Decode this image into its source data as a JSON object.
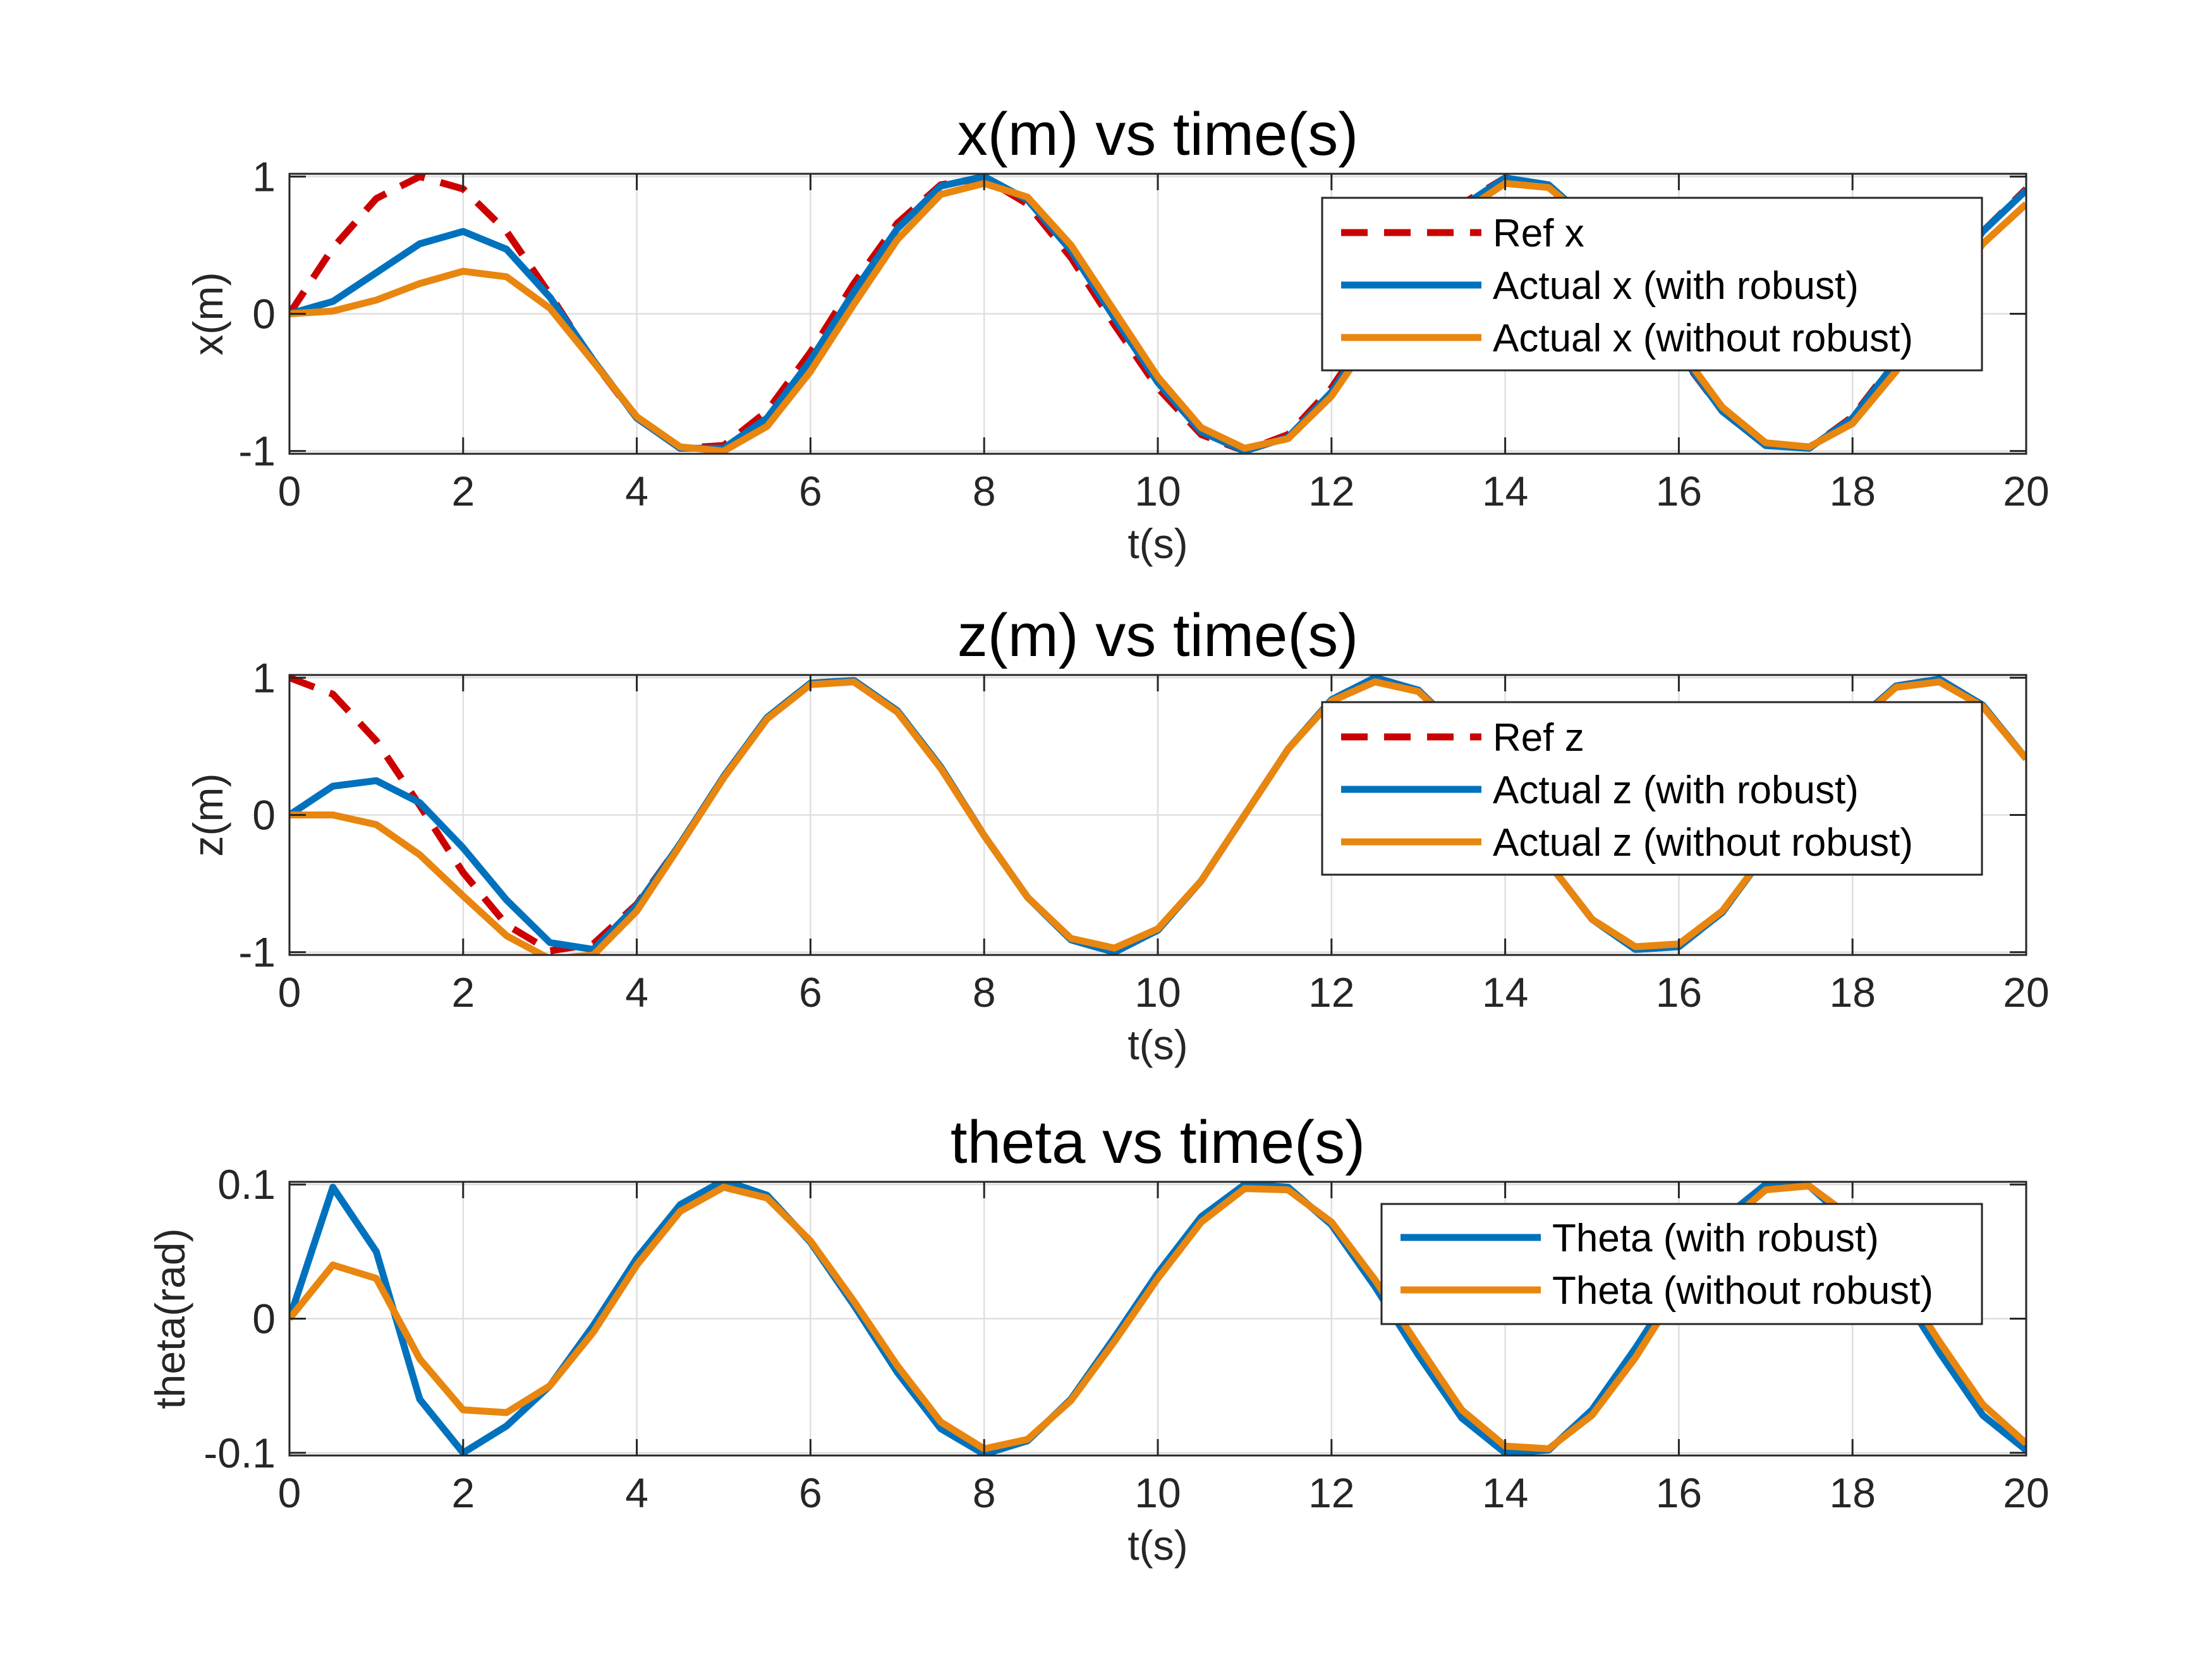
{
  "chart_data": [
    {
      "type": "line",
      "title": "x(m) vs time(s)",
      "xlabel": "t(s)",
      "ylabel": "x(m)",
      "xlim": [
        0,
        20
      ],
      "ylim": [
        -1.02,
        1.02
      ],
      "xticks": [
        0,
        2,
        4,
        6,
        8,
        10,
        12,
        14,
        16,
        18,
        20
      ],
      "yticks": [
        -1,
        0,
        1
      ],
      "ytick_labels": [
        "-1",
        "0",
        "1"
      ],
      "grid": true,
      "legend_position": "top-right",
      "x": [
        0,
        0.5,
        1,
        1.5,
        2,
        2.5,
        3,
        3.5,
        4,
        4.5,
        5,
        5.5,
        6,
        6.5,
        7,
        7.5,
        8,
        8.5,
        9,
        9.5,
        10,
        10.5,
        11,
        11.5,
        12,
        12.5,
        13,
        13.5,
        14,
        14.5,
        15,
        15.5,
        16,
        16.5,
        17,
        17.5,
        18,
        18.5,
        19,
        19.5,
        20
      ],
      "series": [
        {
          "name": "Ref x",
          "color": "#CC0000",
          "dash": true,
          "values": [
            0,
            0.48,
            0.84,
            1.0,
            0.91,
            0.6,
            0.14,
            -0.35,
            -0.76,
            -0.98,
            -0.96,
            -0.71,
            -0.28,
            0.22,
            0.66,
            0.94,
            0.99,
            0.8,
            0.41,
            -0.08,
            -0.54,
            -0.88,
            -1.0,
            -0.88,
            -0.54,
            -0.07,
            0.42,
            0.8,
            0.99,
            0.93,
            0.65,
            0.2,
            -0.29,
            -0.71,
            -0.96,
            -0.98,
            -0.75,
            -0.34,
            0.15,
            0.6,
            0.91
          ]
        },
        {
          "name": "Actual x (with robust)",
          "color": "#0072BD",
          "dash": false,
          "values": [
            0,
            0.09,
            0.3,
            0.51,
            0.6,
            0.47,
            0.12,
            -0.34,
            -0.76,
            -0.98,
            -0.98,
            -0.76,
            -0.34,
            0.16,
            0.62,
            0.93,
            1.0,
            0.83,
            0.46,
            -0.03,
            -0.5,
            -0.86,
            -1.0,
            -0.9,
            -0.57,
            -0.1,
            0.39,
            0.78,
            0.99,
            0.94,
            0.66,
            0.21,
            -0.28,
            -0.71,
            -0.96,
            -0.98,
            -0.76,
            -0.35,
            0.14,
            0.6,
            0.9
          ]
        },
        {
          "name": "Actual x (without robust)",
          "color": "#E8860F",
          "dash": false,
          "values": [
            0,
            0.02,
            0.1,
            0.22,
            0.31,
            0.27,
            0.04,
            -0.35,
            -0.75,
            -0.97,
            -1.0,
            -0.82,
            -0.42,
            0.07,
            0.54,
            0.87,
            0.95,
            0.85,
            0.5,
            0.02,
            -0.46,
            -0.83,
            -0.98,
            -0.91,
            -0.6,
            -0.14,
            0.34,
            0.74,
            0.95,
            0.92,
            0.66,
            0.23,
            -0.25,
            -0.68,
            -0.94,
            -0.97,
            -0.8,
            -0.42,
            0.05,
            0.51,
            0.8
          ]
        }
      ]
    },
    {
      "type": "line",
      "title": "z(m) vs time(s)",
      "xlabel": "t(s)",
      "ylabel": "z(m)",
      "xlim": [
        0,
        20
      ],
      "ylim": [
        -1.02,
        1.02
      ],
      "xticks": [
        0,
        2,
        4,
        6,
        8,
        10,
        12,
        14,
        16,
        18,
        20
      ],
      "yticks": [
        -1,
        0,
        1
      ],
      "ytick_labels": [
        "-1",
        "0",
        "1"
      ],
      "grid": true,
      "legend_position": "top-right",
      "x": [
        0,
        0.5,
        1,
        1.5,
        2,
        2.5,
        3,
        3.5,
        4,
        4.5,
        5,
        5.5,
        6,
        6.5,
        7,
        7.5,
        8,
        8.5,
        9,
        9.5,
        10,
        10.5,
        11,
        11.5,
        12,
        12.5,
        13,
        13.5,
        14,
        14.5,
        15,
        15.5,
        16,
        16.5,
        17,
        17.5,
        18,
        18.5,
        19,
        19.5,
        20
      ],
      "series": [
        {
          "name": "Ref z",
          "color": "#CC0000",
          "dash": true,
          "values": [
            1.0,
            0.88,
            0.54,
            0.07,
            -0.42,
            -0.8,
            -0.99,
            -0.94,
            -0.65,
            -0.21,
            0.28,
            0.71,
            0.96,
            0.98,
            0.76,
            0.35,
            -0.15,
            -0.6,
            -0.91,
            -1.0,
            -0.84,
            -0.48,
            0.0,
            0.48,
            0.84,
            1.0,
            0.91,
            0.6,
            0.14,
            -0.35,
            -0.76,
            -0.98,
            -0.96,
            -0.71,
            -0.28,
            0.22,
            0.66,
            0.94,
            0.99,
            0.8,
            0.41
          ]
        },
        {
          "name": "Actual z (with robust)",
          "color": "#0072BD",
          "dash": false,
          "values": [
            0,
            0.21,
            0.25,
            0.09,
            -0.24,
            -0.62,
            -0.93,
            -0.98,
            -0.66,
            -0.21,
            0.28,
            0.71,
            0.96,
            0.98,
            0.76,
            0.35,
            -0.15,
            -0.6,
            -0.91,
            -1.0,
            -0.84,
            -0.48,
            0.0,
            0.48,
            0.84,
            1.0,
            0.91,
            0.6,
            0.14,
            -0.35,
            -0.76,
            -0.98,
            -0.96,
            -0.71,
            -0.28,
            0.22,
            0.66,
            0.94,
            0.99,
            0.8,
            0.41
          ]
        },
        {
          "name": "Actual z (without robust)",
          "color": "#E8860F",
          "dash": false,
          "values": [
            0,
            0.0,
            -0.07,
            -0.29,
            -0.59,
            -0.88,
            -1.05,
            -1.02,
            -0.7,
            -0.22,
            0.27,
            0.7,
            0.95,
            0.97,
            0.75,
            0.34,
            -0.15,
            -0.6,
            -0.9,
            -0.97,
            -0.83,
            -0.48,
            0.0,
            0.48,
            0.83,
            0.97,
            0.9,
            0.6,
            0.14,
            -0.35,
            -0.76,
            -0.96,
            -0.94,
            -0.7,
            -0.28,
            0.22,
            0.65,
            0.93,
            0.97,
            0.79,
            0.41
          ]
        }
      ]
    },
    {
      "type": "line",
      "title": "theta vs time(s)",
      "xlabel": "t(s)",
      "ylabel": "theta(rad)",
      "xlim": [
        0,
        20
      ],
      "ylim": [
        -0.102,
        0.102
      ],
      "xticks": [
        0,
        2,
        4,
        6,
        8,
        10,
        12,
        14,
        16,
        18,
        20
      ],
      "yticks": [
        -0.1,
        0,
        0.1
      ],
      "ytick_labels": [
        "-0.1",
        "0",
        "0.1"
      ],
      "grid": true,
      "legend_position": "top-right",
      "x": [
        0,
        0.5,
        1,
        1.5,
        2,
        2.5,
        3,
        3.5,
        4,
        4.5,
        5,
        5.5,
        6,
        6.5,
        7,
        7.5,
        8,
        8.5,
        9,
        9.5,
        10,
        10.5,
        11,
        11.5,
        12,
        12.5,
        13,
        13.5,
        14,
        14.5,
        15,
        15.5,
        16,
        16.5,
        17,
        17.5,
        18,
        18.5,
        19,
        19.5,
        20
      ],
      "series": [
        {
          "name": "Theta (with robust)",
          "color": "#0072BD",
          "dash": false,
          "values": [
            0,
            0.098,
            0.05,
            -0.06,
            -0.1,
            -0.08,
            -0.05,
            -0.005,
            0.045,
            0.085,
            0.103,
            0.092,
            0.057,
            0.01,
            -0.04,
            -0.082,
            -0.101,
            -0.091,
            -0.06,
            -0.014,
            0.034,
            0.076,
            0.1,
            0.098,
            0.07,
            0.024,
            -0.027,
            -0.074,
            -0.1,
            -0.098,
            -0.068,
            -0.022,
            0.028,
            0.074,
            0.1,
            0.099,
            0.07,
            0.026,
            -0.025,
            -0.072,
            -0.098
          ]
        },
        {
          "name": "Theta (without robust)",
          "color": "#E8860F",
          "dash": false,
          "values": [
            0,
            0.04,
            0.03,
            -0.03,
            -0.068,
            -0.07,
            -0.05,
            -0.01,
            0.04,
            0.08,
            0.098,
            0.09,
            0.058,
            0.013,
            -0.035,
            -0.077,
            -0.097,
            -0.09,
            -0.061,
            -0.017,
            0.03,
            0.072,
            0.097,
            0.096,
            0.072,
            0.029,
            -0.02,
            -0.068,
            -0.095,
            -0.097,
            -0.072,
            -0.029,
            0.022,
            0.068,
            0.096,
            0.099,
            0.075,
            0.033,
            -0.017,
            -0.064,
            -0.093
          ]
        }
      ]
    }
  ]
}
